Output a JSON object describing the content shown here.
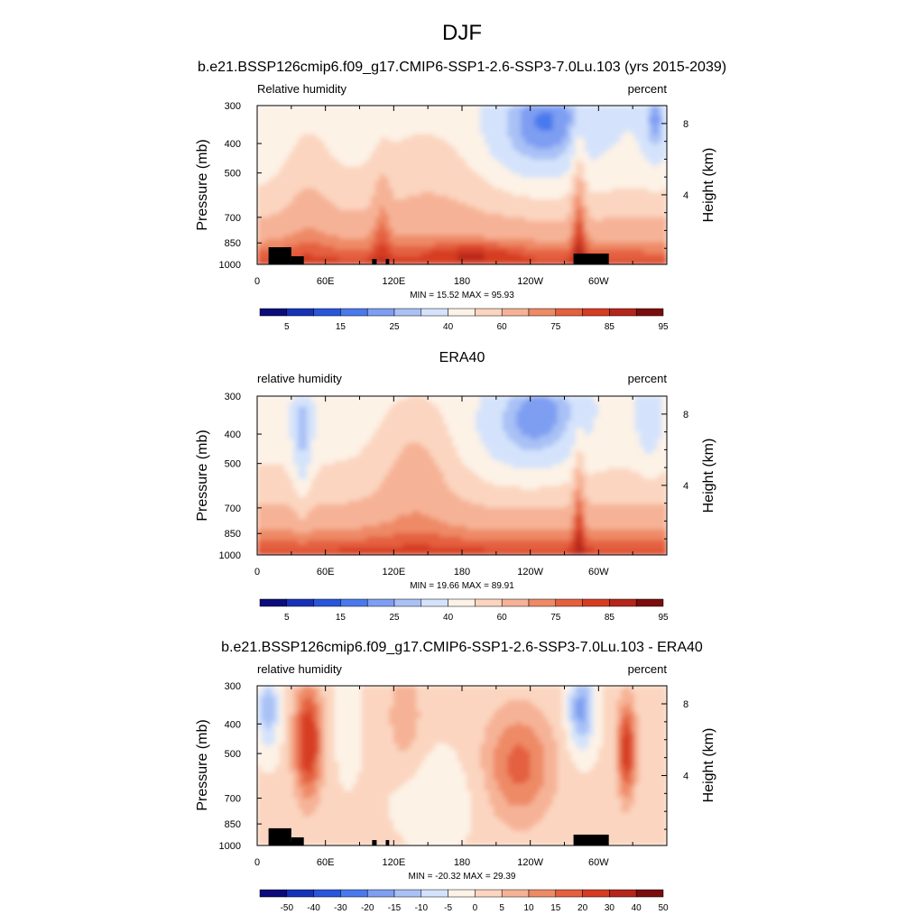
{
  "figure": {
    "title": "DJF",
    "subtitle": "b.e21.BSSP126cmip6.f09_g17.CMIP6-SSP1-2.6-SSP3-7.0Lu.103 (yrs 2015-2039)"
  },
  "colors": {
    "topo": "#000000",
    "abs_scale": [
      "#0b0b7c",
      "#1633b8",
      "#2a56dc",
      "#4a79ee",
      "#7e9ef2",
      "#a9c1f5",
      "#d4e3fb",
      "#fdf2e6",
      "#fbd5c0",
      "#f6b296",
      "#ee8a66",
      "#e4603f",
      "#d63c22",
      "#b5261a",
      "#7b0d0c"
    ],
    "diff_scale": [
      "#0b0b7c",
      "#1633b8",
      "#2a56dc",
      "#4a79ee",
      "#7e9ef2",
      "#a9c1f5",
      "#d4e3fb",
      "#fdf2e6",
      "#fbd5c0",
      "#f6b296",
      "#ee8a66",
      "#e4603f",
      "#d63c22",
      "#b5261a",
      "#7b0d0c"
    ]
  },
  "chart_data": [
    {
      "type": "heatmap",
      "title": "",
      "left_label": "Relative humidity",
      "right_label": "percent",
      "ylabel": "Pressure (mb)",
      "ylabel_right": "Height (km)",
      "x_ticks": [
        "0",
        "60E",
        "120E",
        "180",
        "120W",
        "60W"
      ],
      "y_ticks": [
        "300",
        "400",
        "500",
        "700",
        "850",
        "1000"
      ],
      "y_ticks_right": [
        "8",
        "4"
      ],
      "stats": "MIN = 15.52 MAX = 95.93",
      "min": 15.52,
      "max": 95.93,
      "colorbar_labels": [
        "5",
        "15",
        "25",
        "40",
        "60",
        "75",
        "85",
        "95"
      ],
      "field": "model"
    },
    {
      "type": "heatmap",
      "title": "ERA40",
      "left_label": "relative humidity",
      "right_label": "percent",
      "ylabel": "Pressure (mb)",
      "ylabel_right": "Height (km)",
      "x_ticks": [
        "0",
        "60E",
        "120E",
        "180",
        "120W",
        "60W"
      ],
      "y_ticks": [
        "300",
        "400",
        "500",
        "700",
        "850",
        "1000"
      ],
      "y_ticks_right": [
        "8",
        "4"
      ],
      "stats": "MIN = 19.66 MAX = 89.91",
      "min": 19.66,
      "max": 89.91,
      "colorbar_labels": [
        "5",
        "15",
        "25",
        "40",
        "60",
        "75",
        "85",
        "95"
      ],
      "field": "obs"
    },
    {
      "type": "heatmap",
      "title": "b.e21.BSSP126cmip6.f09_g17.CMIP6-SSP1-2.6-SSP3-7.0Lu.103 - ERA40",
      "left_label": "relative humidity",
      "right_label": "percent",
      "ylabel": "Pressure (mb)",
      "ylabel_right": "Height (km)",
      "x_ticks": [
        "0",
        "60E",
        "120E",
        "180",
        "120W",
        "60W"
      ],
      "y_ticks": [
        "300",
        "400",
        "500",
        "700",
        "850",
        "1000"
      ],
      "y_ticks_right": [
        "8",
        "4"
      ],
      "stats": "MIN = -20.32 MAX = 29.39",
      "min": -20.32,
      "max": 29.39,
      "colorbar_labels": [
        "-50",
        "-40",
        "-30",
        "-20",
        "-15",
        "-10",
        "-5",
        "0",
        "5",
        "10",
        "15",
        "20",
        "30",
        "40",
        "50"
      ],
      "field": "diff"
    }
  ]
}
